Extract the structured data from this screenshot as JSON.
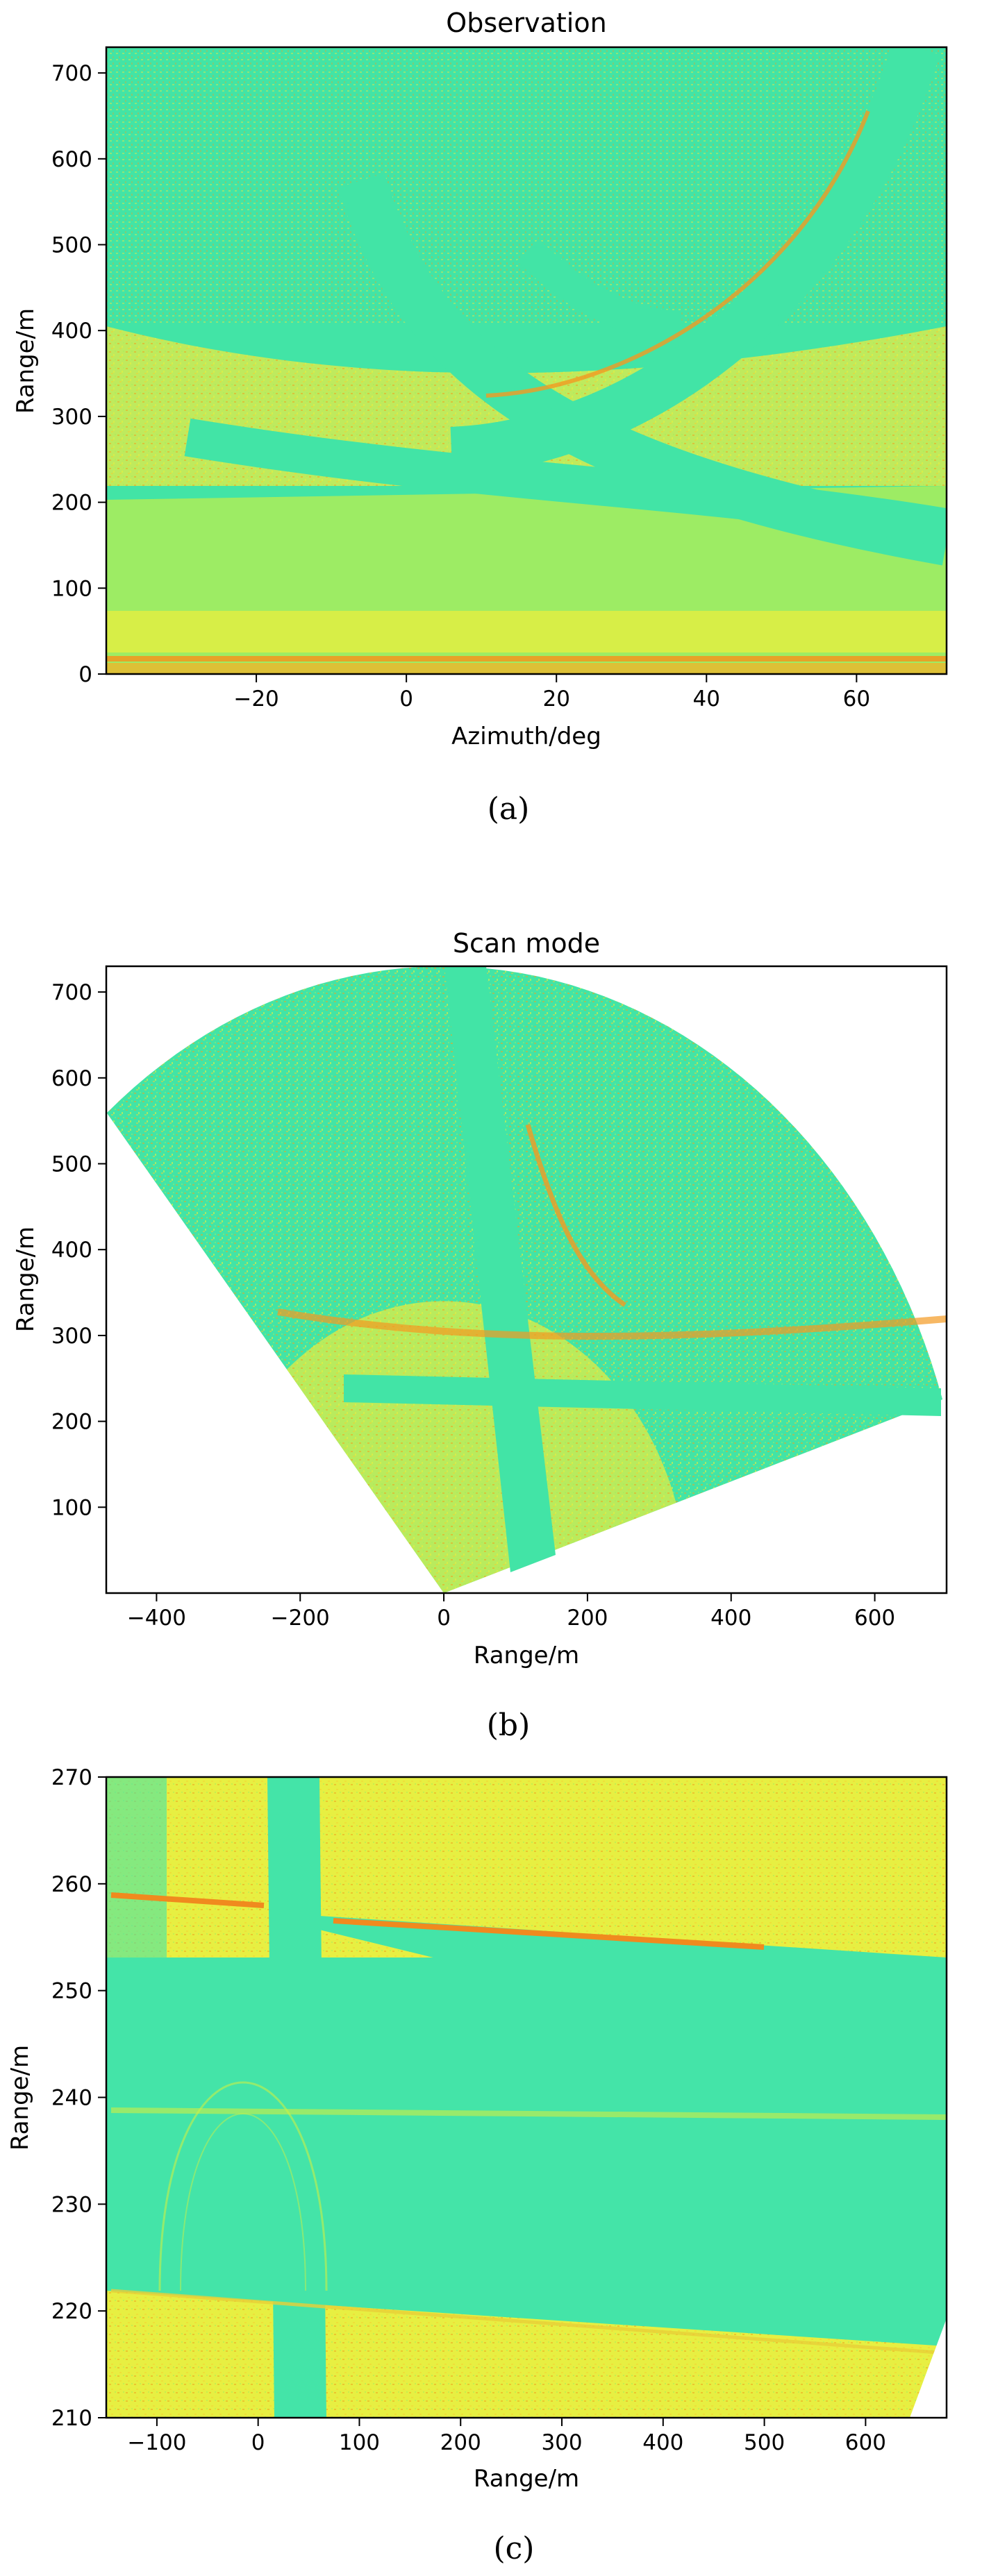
{
  "chart_data": [
    {
      "type": "heatmap",
      "panel": "a",
      "title": "Observation",
      "xlabel": "Azimuth/deg",
      "ylabel": "Range/m",
      "xlim": [
        -40,
        72
      ],
      "ylim": [
        0,
        730
      ],
      "xticks": [
        -20,
        0,
        20,
        40,
        60
      ],
      "yticks": [
        0,
        100,
        200,
        300,
        400,
        500,
        600,
        700
      ],
      "caption": "(a)",
      "colormap": [
        "#3ee6a8",
        "#c8f046",
        "#f0e23a",
        "#f0a11e"
      ]
    },
    {
      "type": "heatmap",
      "panel": "b",
      "title": "Scan mode",
      "xlabel": "Range/m",
      "ylabel": "Range/m",
      "xlim": [
        -470,
        700
      ],
      "ylim": [
        0,
        730
      ],
      "xticks": [
        -400,
        -200,
        0,
        200,
        400,
        600
      ],
      "yticks": [
        100,
        200,
        300,
        400,
        500,
        600,
        700
      ],
      "caption": "(b)",
      "colormap": [
        "#3ee6a8",
        "#c8f046",
        "#f0e23a",
        "#f0a11e"
      ]
    },
    {
      "type": "heatmap",
      "panel": "c",
      "title": "",
      "xlabel": "Range/m",
      "ylabel": "Range/m",
      "xlim": [
        -150,
        680
      ],
      "ylim": [
        210,
        270
      ],
      "xticks": [
        -100,
        0,
        100,
        200,
        300,
        400,
        500,
        600
      ],
      "yticks": [
        210,
        220,
        230,
        240,
        250,
        260,
        270
      ],
      "caption": "(c)",
      "colormap": [
        "#3ee6a8",
        "#c8f046",
        "#f0e23a",
        "#f0a11e"
      ]
    }
  ]
}
